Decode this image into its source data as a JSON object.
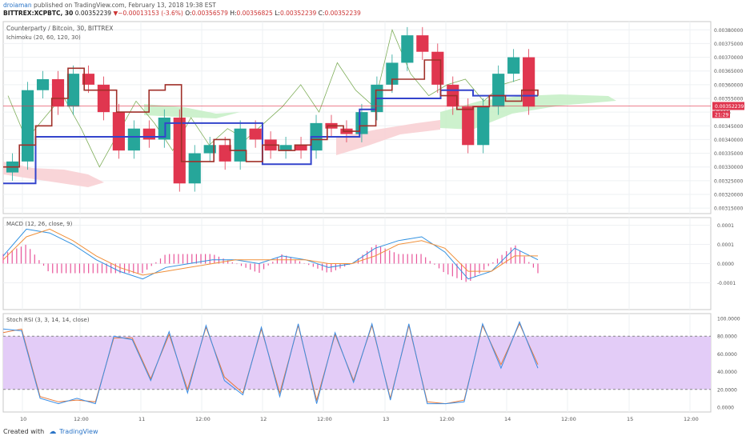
{
  "header": {
    "author": "droiaman",
    "published": "published on TradingView.com, February 13, 2018 19:38 EST",
    "symbol": "BITTREX:XCPBTC, 30",
    "last": "0.00352239",
    "change": "−0.00013153 (-3.6%)",
    "open_label": "O:",
    "open": "0.00356579",
    "high_label": "H:",
    "high": "0.00356825",
    "low_label": "L:",
    "low": "0.00352239",
    "close_label": "C:",
    "close": "0.00352239"
  },
  "footer": {
    "created_with": "Created with",
    "brand": "TradingView"
  },
  "colors": {
    "up": "#26a69a",
    "down": "#e0364f",
    "ichimoku_base": "#3344cc",
    "ichimoku_conv": "#a0302a",
    "lagging": "#7fae5a",
    "cloud_bull": "#c8f0c8",
    "cloud_bear": "#f8d0d4",
    "macd": "#2f90e0",
    "signal": "#f0903a",
    "hist": "#e8559a",
    "stoch_k": "#3a8ee6",
    "stoch_d": "#e87a3a",
    "rsi_band": "#e3ccf7",
    "price_line": "#e0364f"
  },
  "chart_data": [
    {
      "name": "Counterparty / Bitcoin, 30, BITTREX",
      "indicator": "Ichimoku (20, 60, 120, 30)",
      "type": "candlestick",
      "price_label": "0.00352239",
      "countdown": "21:29",
      "ylim": [
        0.00313,
        0.00383
      ],
      "y_ticks": [
        "0.00380000",
        "0.00375000",
        "0.00370000",
        "0.00365000",
        "0.00360000",
        "0.00355000",
        "0.0035",
        "0.00345000",
        "0.00340000",
        "0.00335000",
        "0.00330000",
        "0.00325000",
        "0.00320000",
        "0.00315000"
      ],
      "x_ticks": [
        "10",
        "12:00",
        "11",
        "12:00",
        "12",
        "12:00",
        "13",
        "12:00",
        "14",
        "12:00",
        "15",
        "12:00"
      ],
      "base_line": [
        0.00324,
        0.00324,
        0.00341,
        0.00341,
        0.00341,
        0.00341,
        0.00341,
        0.00341,
        0.00341,
        0.00341,
        0.00346,
        0.00346,
        0.00346,
        0.00346,
        0.00346,
        0.00346,
        0.00331,
        0.00331,
        0.00331,
        0.00341,
        0.00341,
        0.00341,
        0.00351,
        0.00355,
        0.00355,
        0.00355,
        0.00355,
        0.00358,
        0.00358,
        0.00356,
        0.00356,
        0.00356,
        0.00356,
        0.00356
      ],
      "conversion_line": [
        0.0033,
        0.00338,
        0.00345,
        0.00355,
        0.00366,
        0.00358,
        0.00358,
        0.0035,
        0.0035,
        0.00358,
        0.0036,
        0.00332,
        0.00332,
        0.0034,
        0.00336,
        0.00332,
        0.00338,
        0.00336,
        0.00338,
        0.0034,
        0.00345,
        0.00343,
        0.00345,
        0.00358,
        0.00362,
        0.00362,
        0.00369,
        0.00356,
        0.00351,
        0.00352,
        0.00356,
        0.00354,
        0.00358,
        0.00356
      ],
      "lagging_span": [
        0.00356,
        0.0034,
        0.00348,
        0.00356,
        0.00344,
        0.0033,
        0.00342,
        0.00354,
        0.00346,
        0.00336,
        0.00348,
        0.00338,
        0.00344,
        0.0034,
        0.00346,
        0.00352,
        0.0036,
        0.0035,
        0.00368,
        0.00358,
        0.00352,
        0.0038,
        0.00364,
        0.00356,
        0.0036,
        0.00362,
        0.00354,
        0.0036,
        0.00362
      ],
      "candles_close": [
        0.00332,
        0.00358,
        0.00362,
        0.00352,
        0.00364,
        0.0036,
        0.0035,
        0.00336,
        0.00344,
        0.0034,
        0.00348,
        0.00324,
        0.00335,
        0.00338,
        0.00332,
        0.00344,
        0.0034,
        0.00336,
        0.00338,
        0.00336,
        0.00346,
        0.00344,
        0.00342,
        0.0035,
        0.0036,
        0.00368,
        0.00378,
        0.00372,
        0.0036,
        0.00352,
        0.00338,
        0.00352,
        0.00364,
        0.0037,
        0.00352
      ]
    },
    {
      "name": "MACD (12, 26, close, 9)",
      "type": "line",
      "ylim": [
        -0.00012,
        0.00012
      ],
      "y_ticks": [
        "0.0001",
        "0.0001",
        "0.0000",
        "-0.0001"
      ],
      "series": [
        {
          "name": "MACD",
          "values": [
            2e-05,
            9e-05,
            8e-05,
            5e-05,
            1e-05,
            -2e-05,
            -4e-05,
            -1e-05,
            0.0,
            1e-05,
            1e-05,
            0.0,
            2e-05,
            1e-05,
            -1e-05,
            0.0,
            4e-05,
            6e-05,
            7e-05,
            3e-05,
            -4e-05,
            -2e-05,
            4e-05,
            1e-05
          ]
        },
        {
          "name": "Signal",
          "values": [
            1e-05,
            7e-05,
            9e-05,
            6e-05,
            2e-05,
            -1e-05,
            -3e-05,
            -2e-05,
            -1e-05,
            0.0,
            1e-05,
            1e-05,
            1e-05,
            1e-05,
            0.0,
            0.0,
            2e-05,
            5e-05,
            6e-05,
            4e-05,
            -2e-05,
            -2e-05,
            2e-05,
            2e-05
          ]
        }
      ]
    },
    {
      "name": "Stoch RSI (3, 3, 14, 14, close)",
      "type": "line",
      "ylim": [
        0,
        100
      ],
      "y_ticks": [
        "100.0000",
        "80.0000",
        "60.0000",
        "40.0000",
        "20.0000",
        "0.0000"
      ],
      "band": [
        20,
        80
      ],
      "series": [
        {
          "name": "K",
          "values": [
            88,
            86,
            10,
            4,
            10,
            4,
            80,
            76,
            30,
            85,
            16,
            92,
            30,
            14,
            90,
            12,
            94,
            4,
            84,
            28,
            94,
            8,
            94,
            4,
            4,
            6,
            94,
            44,
            96,
            44
          ]
        },
        {
          "name": "D",
          "values": [
            84,
            88,
            12,
            6,
            8,
            6,
            78,
            78,
            32,
            82,
            20,
            90,
            34,
            16,
            88,
            16,
            92,
            8,
            82,
            30,
            92,
            10,
            92,
            6,
            4,
            8,
            92,
            48,
            94,
            48
          ]
        }
      ]
    }
  ]
}
